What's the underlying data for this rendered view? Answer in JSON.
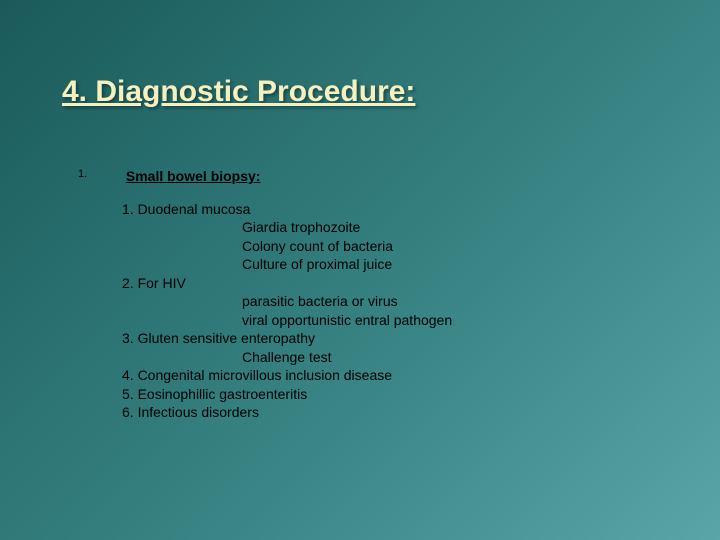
{
  "slide": {
    "title": "4. Diagnostic Procedure:",
    "list_marker": "1.",
    "subheading": "Small bowel biopsy:",
    "items": {
      "l1": "1. Duodenal mucosa",
      "l1a": "Giardia trophozoite",
      "l1b": "Colony count of bacteria",
      "l1c": "Culture of proximal juice",
      "l2": "2. For HIV",
      "l2a": "parasitic bacteria or virus",
      "l2b": "viral opportunistic entral pathogen",
      "l3": "3. Gluten sensitive enteropathy",
      "l3a": "Challenge test",
      "l4": "4. Congenital microvillous inclusion disease",
      "l5": "5. Eosinophillic gastroenteritis",
      "l6": "6. Infectious disorders"
    }
  },
  "style": {
    "background_gradient": [
      "#1a5a5a",
      "#2a7070",
      "#3a8585",
      "#5aa5a5"
    ],
    "title_color": "#f5f0c0",
    "title_fontsize": 30,
    "body_color": "#000000",
    "body_fontsize": 14,
    "title_font": "Comic Sans MS",
    "body_font": "Arial"
  }
}
